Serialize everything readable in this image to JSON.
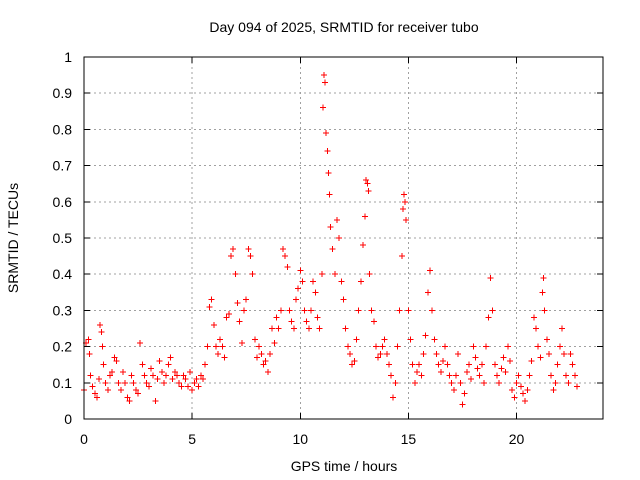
{
  "chart_data": {
    "type": "scatter",
    "title": "Day 094 of 2025, SRMTID for receiver tubo",
    "xlabel": "GPS time / hours",
    "ylabel": "SRMTID / TECUs",
    "xlim": [
      0,
      24
    ],
    "ylim": [
      0,
      1
    ],
    "x_ticks": [
      0,
      5,
      10,
      15,
      20
    ],
    "y_ticks": [
      0,
      0.1,
      0.2,
      0.3,
      0.4,
      0.5,
      0.6,
      0.7,
      0.8,
      0.9,
      1
    ],
    "x_tick_labels": [
      "0",
      "5",
      "10",
      "15",
      "20"
    ],
    "y_tick_labels": [
      "0",
      "0.1",
      "0.2",
      "0.3",
      "0.4",
      "0.5",
      "0.6",
      "0.7",
      "0.8",
      "0.9",
      "1"
    ],
    "grid": true,
    "marker": "+",
    "series_color": "#ff0000",
    "series": [
      {
        "name": "SRMTID",
        "points": [
          [
            0.0,
            0.08
          ],
          [
            0.1,
            0.21
          ],
          [
            0.2,
            0.22
          ],
          [
            0.25,
            0.18
          ],
          [
            0.3,
            0.12
          ],
          [
            0.4,
            0.09
          ],
          [
            0.5,
            0.07
          ],
          [
            0.6,
            0.06
          ],
          [
            0.7,
            0.11
          ],
          [
            0.75,
            0.26
          ],
          [
            0.8,
            0.24
          ],
          [
            0.85,
            0.2
          ],
          [
            0.9,
            0.15
          ],
          [
            1.0,
            0.1
          ],
          [
            1.1,
            0.08
          ],
          [
            1.2,
            0.12
          ],
          [
            1.3,
            0.13
          ],
          [
            1.4,
            0.17
          ],
          [
            1.5,
            0.16
          ],
          [
            1.6,
            0.1
          ],
          [
            1.7,
            0.08
          ],
          [
            1.8,
            0.13
          ],
          [
            1.9,
            0.1
          ],
          [
            2.0,
            0.06
          ],
          [
            2.1,
            0.05
          ],
          [
            2.2,
            0.12
          ],
          [
            2.3,
            0.1
          ],
          [
            2.4,
            0.08
          ],
          [
            2.5,
            0.07
          ],
          [
            2.6,
            0.21
          ],
          [
            2.7,
            0.15
          ],
          [
            2.8,
            0.12
          ],
          [
            2.9,
            0.1
          ],
          [
            3.0,
            0.09
          ],
          [
            3.1,
            0.14
          ],
          [
            3.2,
            0.12
          ],
          [
            3.3,
            0.05
          ],
          [
            3.4,
            0.11
          ],
          [
            3.5,
            0.16
          ],
          [
            3.6,
            0.13
          ],
          [
            3.7,
            0.1
          ],
          [
            3.8,
            0.12
          ],
          [
            3.9,
            0.15
          ],
          [
            4.0,
            0.17
          ],
          [
            4.1,
            0.11
          ],
          [
            4.2,
            0.13
          ],
          [
            4.3,
            0.12
          ],
          [
            4.4,
            0.1
          ],
          [
            4.5,
            0.09
          ],
          [
            4.6,
            0.12
          ],
          [
            4.7,
            0.11
          ],
          [
            4.8,
            0.09
          ],
          [
            4.9,
            0.13
          ],
          [
            5.0,
            0.08
          ],
          [
            5.1,
            0.1
          ],
          [
            5.2,
            0.11
          ],
          [
            5.3,
            0.09
          ],
          [
            5.4,
            0.12
          ],
          [
            5.5,
            0.11
          ],
          [
            5.6,
            0.15
          ],
          [
            5.7,
            0.2
          ],
          [
            5.8,
            0.31
          ],
          [
            5.9,
            0.33
          ],
          [
            6.0,
            0.26
          ],
          [
            6.1,
            0.2
          ],
          [
            6.2,
            0.18
          ],
          [
            6.3,
            0.22
          ],
          [
            6.4,
            0.2
          ],
          [
            6.5,
            0.17
          ],
          [
            6.6,
            0.28
          ],
          [
            6.7,
            0.29
          ],
          [
            6.8,
            0.45
          ],
          [
            6.9,
            0.47
          ],
          [
            7.0,
            0.4
          ],
          [
            7.1,
            0.32
          ],
          [
            7.2,
            0.27
          ],
          [
            7.3,
            0.21
          ],
          [
            7.4,
            0.3
          ],
          [
            7.5,
            0.33
          ],
          [
            7.6,
            0.47
          ],
          [
            7.7,
            0.45
          ],
          [
            7.8,
            0.4
          ],
          [
            7.9,
            0.22
          ],
          [
            8.0,
            0.17
          ],
          [
            8.1,
            0.2
          ],
          [
            8.2,
            0.18
          ],
          [
            8.3,
            0.15
          ],
          [
            8.4,
            0.16
          ],
          [
            8.5,
            0.13
          ],
          [
            8.6,
            0.18
          ],
          [
            8.7,
            0.25
          ],
          [
            8.8,
            0.21
          ],
          [
            8.9,
            0.28
          ],
          [
            9.0,
            0.25
          ],
          [
            9.1,
            0.3
          ],
          [
            9.2,
            0.47
          ],
          [
            9.3,
            0.45
          ],
          [
            9.4,
            0.42
          ],
          [
            9.5,
            0.3
          ],
          [
            9.6,
            0.27
          ],
          [
            9.7,
            0.25
          ],
          [
            9.8,
            0.33
          ],
          [
            9.9,
            0.36
          ],
          [
            10.0,
            0.41
          ],
          [
            10.1,
            0.38
          ],
          [
            10.2,
            0.3
          ],
          [
            10.3,
            0.27
          ],
          [
            10.4,
            0.25
          ],
          [
            10.5,
            0.3
          ],
          [
            10.6,
            0.38
          ],
          [
            10.7,
            0.35
          ],
          [
            10.8,
            0.28
          ],
          [
            10.9,
            0.25
          ],
          [
            11.0,
            0.4
          ],
          [
            11.05,
            0.86
          ],
          [
            11.1,
            0.95
          ],
          [
            11.15,
            0.93
          ],
          [
            11.2,
            0.79
          ],
          [
            11.25,
            0.74
          ],
          [
            11.3,
            0.68
          ],
          [
            11.35,
            0.62
          ],
          [
            11.4,
            0.53
          ],
          [
            11.5,
            0.47
          ],
          [
            11.6,
            0.4
          ],
          [
            11.7,
            0.55
          ],
          [
            11.8,
            0.5
          ],
          [
            11.9,
            0.38
          ],
          [
            12.0,
            0.33
          ],
          [
            12.1,
            0.25
          ],
          [
            12.2,
            0.2
          ],
          [
            12.3,
            0.18
          ],
          [
            12.4,
            0.15
          ],
          [
            12.5,
            0.16
          ],
          [
            12.6,
            0.22
          ],
          [
            12.7,
            0.3
          ],
          [
            12.8,
            0.38
          ],
          [
            12.9,
            0.48
          ],
          [
            13.0,
            0.56
          ],
          [
            13.05,
            0.66
          ],
          [
            13.1,
            0.65
          ],
          [
            13.15,
            0.63
          ],
          [
            13.2,
            0.4
          ],
          [
            13.3,
            0.3
          ],
          [
            13.4,
            0.27
          ],
          [
            13.5,
            0.2
          ],
          [
            13.6,
            0.17
          ],
          [
            13.7,
            0.18
          ],
          [
            13.8,
            0.2
          ],
          [
            13.9,
            0.22
          ],
          [
            14.0,
            0.18
          ],
          [
            14.1,
            0.15
          ],
          [
            14.2,
            0.12
          ],
          [
            14.3,
            0.06
          ],
          [
            14.4,
            0.1
          ],
          [
            14.5,
            0.2
          ],
          [
            14.6,
            0.3
          ],
          [
            14.7,
            0.45
          ],
          [
            14.75,
            0.58
          ],
          [
            14.8,
            0.62
          ],
          [
            14.85,
            0.6
          ],
          [
            14.9,
            0.55
          ],
          [
            15.0,
            0.3
          ],
          [
            15.1,
            0.22
          ],
          [
            15.2,
            0.15
          ],
          [
            15.3,
            0.1
          ],
          [
            15.4,
            0.13
          ],
          [
            15.5,
            0.15
          ],
          [
            15.6,
            0.12
          ],
          [
            15.7,
            0.18
          ],
          [
            15.8,
            0.23
          ],
          [
            15.9,
            0.35
          ],
          [
            16.0,
            0.41
          ],
          [
            16.1,
            0.3
          ],
          [
            16.2,
            0.22
          ],
          [
            16.3,
            0.18
          ],
          [
            16.4,
            0.15
          ],
          [
            16.5,
            0.13
          ],
          [
            16.6,
            0.16
          ],
          [
            16.7,
            0.2
          ],
          [
            16.8,
            0.15
          ],
          [
            16.9,
            0.12
          ],
          [
            17.0,
            0.1
          ],
          [
            17.1,
            0.08
          ],
          [
            17.2,
            0.12
          ],
          [
            17.3,
            0.18
          ],
          [
            17.4,
            0.1
          ],
          [
            17.5,
            0.04
          ],
          [
            17.6,
            0.07
          ],
          [
            17.7,
            0.13
          ],
          [
            17.8,
            0.15
          ],
          [
            17.9,
            0.11
          ],
          [
            18.0,
            0.2
          ],
          [
            18.1,
            0.17
          ],
          [
            18.2,
            0.14
          ],
          [
            18.3,
            0.12
          ],
          [
            18.4,
            0.15
          ],
          [
            18.5,
            0.1
          ],
          [
            18.6,
            0.2
          ],
          [
            18.7,
            0.28
          ],
          [
            18.8,
            0.39
          ],
          [
            18.9,
            0.3
          ],
          [
            19.0,
            0.15
          ],
          [
            19.1,
            0.12
          ],
          [
            19.2,
            0.1
          ],
          [
            19.3,
            0.14
          ],
          [
            19.4,
            0.17
          ],
          [
            19.5,
            0.13
          ],
          [
            19.6,
            0.2
          ],
          [
            19.7,
            0.16
          ],
          [
            19.8,
            0.08
          ],
          [
            19.9,
            0.06
          ],
          [
            20.0,
            0.1
          ],
          [
            20.1,
            0.12
          ],
          [
            20.2,
            0.09
          ],
          [
            20.3,
            0.07
          ],
          [
            20.4,
            0.05
          ],
          [
            20.5,
            0.08
          ],
          [
            20.6,
            0.12
          ],
          [
            20.7,
            0.16
          ],
          [
            20.8,
            0.28
          ],
          [
            20.9,
            0.25
          ],
          [
            21.0,
            0.2
          ],
          [
            21.1,
            0.17
          ],
          [
            21.2,
            0.35
          ],
          [
            21.25,
            0.39
          ],
          [
            21.3,
            0.3
          ],
          [
            21.4,
            0.22
          ],
          [
            21.5,
            0.18
          ],
          [
            21.6,
            0.12
          ],
          [
            21.7,
            0.08
          ],
          [
            21.8,
            0.1
          ],
          [
            21.9,
            0.15
          ],
          [
            22.0,
            0.2
          ],
          [
            22.1,
            0.25
          ],
          [
            22.2,
            0.18
          ],
          [
            22.3,
            0.12
          ],
          [
            22.4,
            0.1
          ],
          [
            22.5,
            0.18
          ],
          [
            22.6,
            0.15
          ],
          [
            22.7,
            0.12
          ],
          [
            22.8,
            0.09
          ]
        ]
      }
    ]
  }
}
